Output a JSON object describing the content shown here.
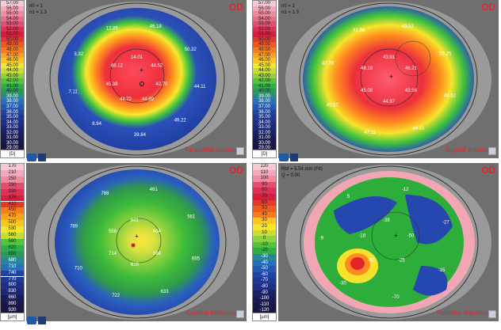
{
  "figure_label": "A",
  "panels": [
    {
      "od": "OD",
      "title": "Tangential anterior",
      "params": [
        "n0 = 1",
        "n1 = 1.3"
      ],
      "unit": "[D]",
      "scale": [
        "57.00",
        "56.00",
        "55.00",
        "54.00",
        "53.00",
        "52.00",
        "51.00",
        "50.00",
        "49.00",
        "48.00",
        "47.00",
        "46.00",
        "45.00",
        "44.00",
        "43.00",
        "42.00",
        "41.00",
        "40.00",
        "39.00",
        "38.00",
        "37.00",
        "36.00",
        "35.00",
        "34.00",
        "33.00",
        "32.00",
        "31.00",
        "30.00",
        "29.00"
      ],
      "values": [
        "14.01",
        "44.52",
        "42.70",
        "44.69",
        "44.72",
        "45.38",
        "48.12",
        "46.18",
        "50.32",
        "44.11",
        "49.22",
        "39.84",
        "8.94",
        "7.11",
        "3.32",
        "12.85"
      ]
    },
    {
      "od": "OD",
      "title": "Sagittal anterior",
      "params": [
        "n0 = 1",
        "n1 = 1.3"
      ],
      "unit": "[D]",
      "scale": [
        "57.00",
        "56.00",
        "55.00",
        "54.00",
        "53.00",
        "52.00",
        "51.00",
        "50.00",
        "49.00",
        "48.00",
        "47.00",
        "46.00",
        "45.00",
        "44.00",
        "43.00",
        "42.00",
        "41.00",
        "40.00",
        "39.00",
        "38.00",
        "37.00",
        "36.00",
        "35.00",
        "34.00",
        "33.00",
        "32.00",
        "31.00",
        "30.00",
        "29.00"
      ],
      "values": [
        "43.91",
        "46.21",
        "43.56",
        "44.97",
        "45.08",
        "48.18",
        "49.53",
        "50.25",
        "48.52",
        "44.61",
        "47.11",
        "45.97",
        "43.28",
        "41.66"
      ]
    },
    {
      "od": "OD",
      "title": "Corneal thickness",
      "params": [],
      "unit": "[µm]",
      "scale": [
        "170",
        "210",
        "250",
        "290",
        "330",
        "370",
        "410",
        "450",
        "470",
        "500",
        "530",
        "560",
        "590",
        "620",
        "650",
        "680",
        "710",
        "740",
        "770",
        "800",
        "830",
        "860",
        "890",
        "920"
      ],
      "values": [
        "681",
        "604",
        "698",
        "616",
        "714",
        "556",
        "461",
        "561",
        "695",
        "633",
        "722",
        "710",
        "789",
        "788"
      ]
    },
    {
      "od": "OD",
      "title": "Posterior elevation",
      "params": [
        "Rbf = 5.54 mm (Fit)",
        "Q = 0.00"
      ],
      "unit": "[µm]",
      "scale": [
        "120",
        "110",
        "100",
        "90",
        "80",
        "70",
        "60",
        "50",
        "40",
        "30",
        "20",
        "10",
        "0",
        "-10",
        "-20",
        "-30",
        "-40",
        "-50",
        "-60",
        "-70",
        "-80",
        "-90",
        "-100",
        "-110",
        "-120"
      ],
      "values": [
        "-38",
        "-50",
        "-25",
        "-60",
        "-18",
        "-12",
        "-27",
        "-15",
        "-70",
        "-30",
        "-9",
        "5"
      ]
    }
  ],
  "colors": {
    "title_red": "#e0262e",
    "logo_blue": "#1e5aa8"
  }
}
